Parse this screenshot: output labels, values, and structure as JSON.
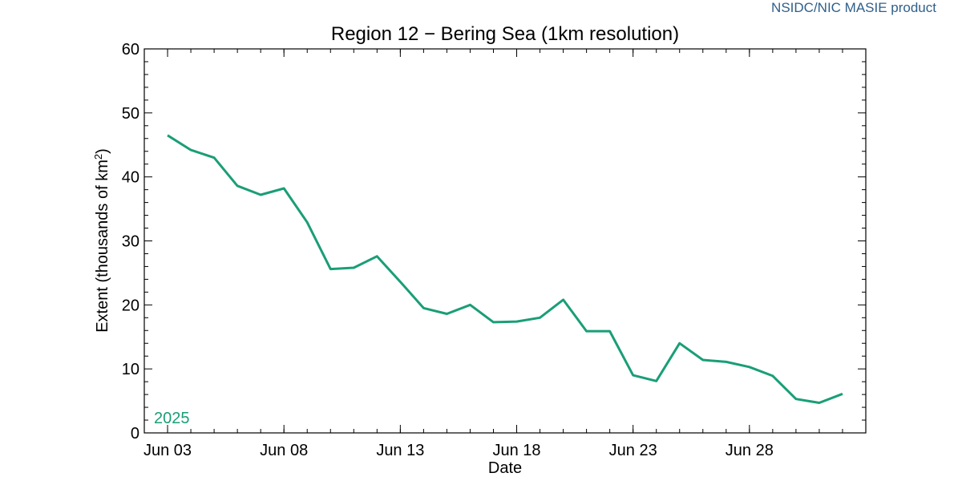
{
  "credit": "NSIDC/NIC MASIE product",
  "colors": {
    "credit": "#2f5f8a",
    "line": "#1a9e77",
    "axis": "#000000"
  },
  "chart_data": {
    "type": "line",
    "title": "Region 12 − Bering Sea (1km resolution)",
    "xlabel": "Date",
    "ylabel": "Extent (thousands of km²)",
    "ylim": [
      0,
      60
    ],
    "yticks": [
      0,
      10,
      20,
      30,
      40,
      50,
      60
    ],
    "xticks": [
      "Jun 03",
      "Jun 08",
      "Jun 13",
      "Jun 18",
      "Jun 23",
      "Jun 28"
    ],
    "xlim": [
      "2025-06-02",
      "2025-07-03"
    ],
    "grid": false,
    "annotation": "2025",
    "series": [
      {
        "name": "2025",
        "x": [
          "2025-06-03",
          "2025-06-04",
          "2025-06-05",
          "2025-06-06",
          "2025-06-07",
          "2025-06-08",
          "2025-06-09",
          "2025-06-10",
          "2025-06-11",
          "2025-06-12",
          "2025-06-13",
          "2025-06-14",
          "2025-06-15",
          "2025-06-16",
          "2025-06-17",
          "2025-06-18",
          "2025-06-19",
          "2025-06-20",
          "2025-06-21",
          "2025-06-22",
          "2025-06-23",
          "2025-06-24",
          "2025-06-25",
          "2025-06-26",
          "2025-06-27",
          "2025-06-28",
          "2025-06-29",
          "2025-06-30",
          "2025-07-01",
          "2025-07-02"
        ],
        "values": [
          46.5,
          44.2,
          43.0,
          38.6,
          37.2,
          38.2,
          32.9,
          25.6,
          25.8,
          27.6,
          23.6,
          19.5,
          18.6,
          20.0,
          17.3,
          17.4,
          18.0,
          20.8,
          15.9,
          15.9,
          9.0,
          8.1,
          14.0,
          11.4,
          11.1,
          10.3,
          8.9,
          5.3,
          4.7,
          6.1
        ]
      }
    ]
  }
}
